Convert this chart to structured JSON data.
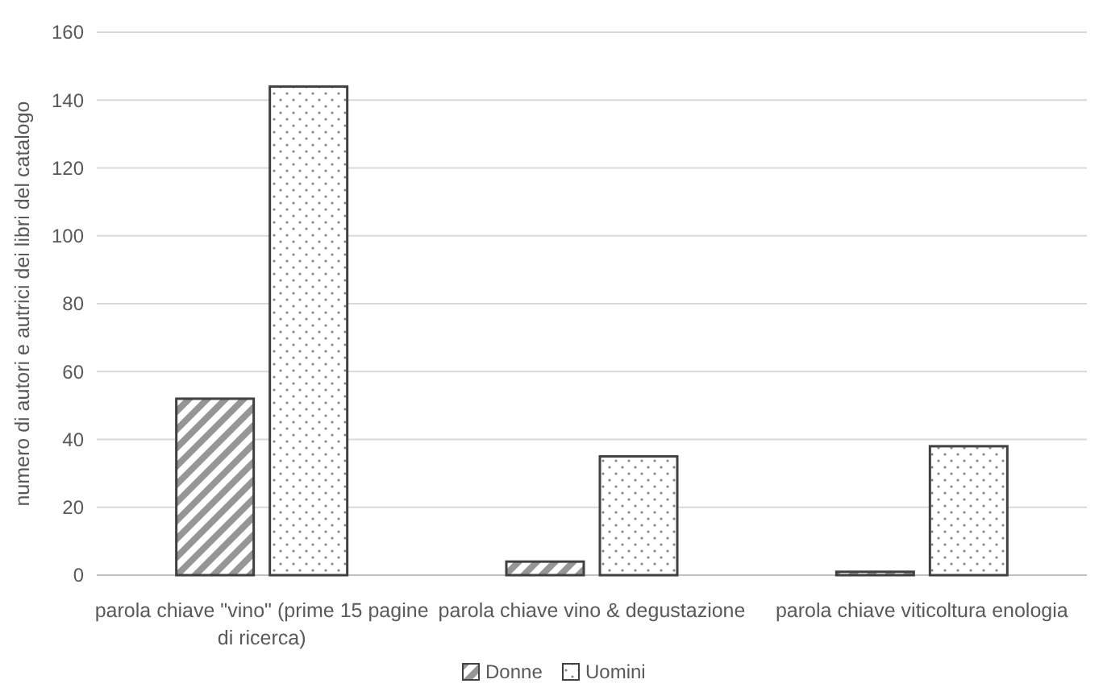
{
  "chart_data": {
    "type": "bar",
    "ylabel": "numero di autori e autrici dei libri del catalogo",
    "categories": [
      "parola chiave \"vino\" (prime 15 pagine di ricerca)",
      "parola chiave vino & degustazione",
      "parola chiave viticoltura enologia"
    ],
    "series": [
      {
        "name": "Donne",
        "color": "#404040",
        "values": [
          52,
          4,
          1
        ]
      },
      {
        "name": "Uomini",
        "color": "#404040",
        "values": [
          144,
          35,
          38
        ]
      }
    ],
    "ylim": [
      0,
      160
    ],
    "yticks": [
      0,
      20,
      40,
      60,
      80,
      100,
      120,
      140,
      160
    ],
    "grid": "y",
    "legend": "bottom"
  }
}
